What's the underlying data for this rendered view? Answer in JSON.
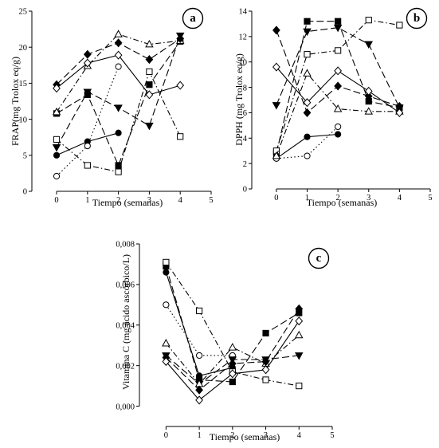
{
  "chart_data": [
    {
      "type": "scatter",
      "panel_label": "a",
      "xlabel": "Tiempo (semanas)",
      "ylabel": "FRAP(mg Trolox eq/g)",
      "xlim": [
        -0.8,
        5
      ],
      "ylim": [
        0,
        25
      ],
      "xticks": [
        0,
        1,
        2,
        3,
        4,
        5
      ],
      "yticks": [
        0,
        5,
        10,
        15,
        20,
        25
      ],
      "xtick_labels": [
        "0",
        "1",
        "2",
        "3",
        "4",
        "5"
      ],
      "ytick_labels": [
        "0",
        "5",
        "10",
        "15",
        "20",
        "25"
      ],
      "grid": false,
      "legend": "none",
      "series": [
        {
          "marker": "circle-filled",
          "dash": "solid",
          "x": [
            0,
            1,
            2
          ],
          "y": [
            5.0,
            6.9,
            8.1
          ]
        },
        {
          "marker": "circle-open",
          "dash": "dot",
          "x": [
            0,
            1,
            2
          ],
          "y": [
            2.1,
            6.3,
            17.3
          ]
        },
        {
          "marker": "square-filled",
          "dash": "long-dash",
          "x": [
            0,
            1,
            2,
            3,
            4
          ],
          "y": [
            10.8,
            13.4,
            3.6,
            14.8,
            20.8
          ]
        },
        {
          "marker": "square-open",
          "dash": "dash-dot",
          "x": [
            0,
            1,
            2,
            3,
            4
          ],
          "y": [
            7.2,
            3.6,
            2.7,
            16.6,
            7.6
          ]
        },
        {
          "marker": "triangle-down-filled",
          "dash": "long-dash",
          "x": [
            0,
            1,
            2,
            3,
            4
          ],
          "y": [
            6.1,
            13.8,
            11.6,
            9.1,
            21.6
          ]
        },
        {
          "marker": "triangle-up-open",
          "dash": "dash-dot",
          "x": [
            0,
            1,
            2,
            3,
            4
          ],
          "y": [
            11.0,
            17.4,
            21.8,
            20.4,
            20.9
          ]
        },
        {
          "marker": "diamond-filled",
          "dash": "long-dash",
          "x": [
            0,
            1,
            2,
            3,
            4
          ],
          "y": [
            14.8,
            19.0,
            20.6,
            18.3,
            21.2
          ]
        },
        {
          "marker": "diamond-open",
          "dash": "solid",
          "x": [
            0,
            1,
            2,
            3,
            4
          ],
          "y": [
            14.3,
            17.8,
            18.9,
            13.4,
            14.7
          ]
        }
      ]
    },
    {
      "type": "scatter",
      "panel_label": "b",
      "xlabel": "Tiempo (semanas)",
      "ylabel": "DPPH  (mg Trolox eq/g)",
      "xlim": [
        -0.8,
        5
      ],
      "ylim": [
        0,
        14
      ],
      "xticks": [
        0,
        1,
        2,
        3,
        4,
        5
      ],
      "yticks": [
        0,
        2,
        4,
        6,
        8,
        10,
        12,
        14
      ],
      "xtick_labels": [
        "0",
        "1",
        "2",
        "3",
        "4",
        "5"
      ],
      "ytick_labels": [
        "0",
        "2",
        "4",
        "6",
        "8",
        "10",
        "12",
        "14"
      ],
      "grid": false,
      "legend": "none",
      "series": [
        {
          "marker": "circle-filled",
          "dash": "solid",
          "x": [
            0,
            1,
            2
          ],
          "y": [
            2.4,
            4.1,
            4.3
          ]
        },
        {
          "marker": "circle-open",
          "dash": "dot",
          "x": [
            0,
            1,
            2
          ],
          "y": [
            2.4,
            2.6,
            4.9
          ]
        },
        {
          "marker": "square-filled",
          "dash": "long-dash",
          "x": [
            0,
            1,
            2,
            3,
            4
          ],
          "y": [
            2.8,
            13.2,
            13.2,
            6.9,
            6.4
          ]
        },
        {
          "marker": "square-open",
          "dash": "dash-dot",
          "x": [
            0,
            1,
            2,
            3,
            4
          ],
          "y": [
            3.0,
            10.6,
            10.9,
            13.3,
            12.9
          ]
        },
        {
          "marker": "triangle-down-filled",
          "dash": "long-dash",
          "x": [
            0,
            1,
            2,
            3,
            4
          ],
          "y": [
            6.6,
            12.4,
            12.7,
            11.4,
            6.4
          ]
        },
        {
          "marker": "triangle-up-open",
          "dash": "dash-dot",
          "x": [
            0,
            1,
            2,
            3,
            4
          ],
          "y": [
            2.6,
            9.1,
            6.3,
            6.1,
            6.1
          ]
        },
        {
          "marker": "diamond-filled",
          "dash": "long-dash",
          "x": [
            0,
            1,
            2,
            3,
            4
          ],
          "y": [
            12.5,
            6.0,
            8.1,
            7.3,
            6.5
          ]
        },
        {
          "marker": "diamond-open",
          "dash": "solid",
          "x": [
            0,
            1,
            2,
            3,
            4
          ],
          "y": [
            9.6,
            6.8,
            9.3,
            7.7,
            6.0
          ]
        }
      ]
    },
    {
      "type": "scatter",
      "panel_label": "c",
      "xlabel": "Tiempo (semanas)",
      "ylabel": "Vitamina C (mg ácido ascórbico/L)",
      "xlim": [
        -0.8,
        5
      ],
      "ylim": [
        -0.001,
        0.008
      ],
      "xticks": [
        0,
        1,
        2,
        3,
        4,
        5
      ],
      "yticks": [
        0,
        0.002,
        0.004,
        0.006,
        0.008
      ],
      "xtick_labels": [
        "0",
        "1",
        "2",
        "3",
        "4",
        "5"
      ],
      "ytick_labels": [
        "0,000",
        "0,002",
        "0,004",
        "0,006",
        "0,008"
      ],
      "grid": false,
      "legend": "none",
      "series": [
        {
          "marker": "circle-filled",
          "dash": "solid",
          "x": [
            0,
            1,
            2
          ],
          "y": [
            0.0066,
            0.0015,
            0.0019
          ]
        },
        {
          "marker": "circle-open",
          "dash": "dot",
          "x": [
            0,
            1,
            2
          ],
          "y": [
            0.005,
            0.0025,
            0.0025
          ]
        },
        {
          "marker": "square-filled",
          "dash": "long-dash",
          "x": [
            0,
            1,
            2,
            3,
            4
          ],
          "y": [
            0.0069,
            0.0013,
            0.0012,
            0.0036,
            0.0046
          ]
        },
        {
          "marker": "square-open",
          "dash": "dash-dot",
          "x": [
            0,
            1,
            2,
            3,
            4
          ],
          "y": [
            0.0071,
            0.0047,
            0.0017,
            0.0013,
            0.001
          ]
        },
        {
          "marker": "triangle-down-filled",
          "dash": "long-dash",
          "x": [
            0,
            1,
            2,
            3,
            4
          ],
          "y": [
            0.0025,
            0.0011,
            0.0023,
            0.0023,
            0.0025
          ]
        },
        {
          "marker": "triangle-up-open",
          "dash": "dash-dot",
          "x": [
            0,
            1,
            2,
            3,
            4
          ],
          "y": [
            0.0031,
            0.0011,
            0.0029,
            0.0021,
            0.0035
          ]
        },
        {
          "marker": "diamond-filled",
          "dash": "long-dash",
          "x": [
            0,
            1,
            2,
            3,
            4
          ],
          "y": [
            0.0024,
            0.0008,
            0.0021,
            0.0022,
            0.0048
          ]
        },
        {
          "marker": "diamond-open",
          "dash": "solid",
          "x": [
            0,
            1,
            2,
            3,
            4
          ],
          "y": [
            0.0022,
            0.0003,
            0.0016,
            0.0018,
            0.0042
          ]
        }
      ]
    }
  ]
}
